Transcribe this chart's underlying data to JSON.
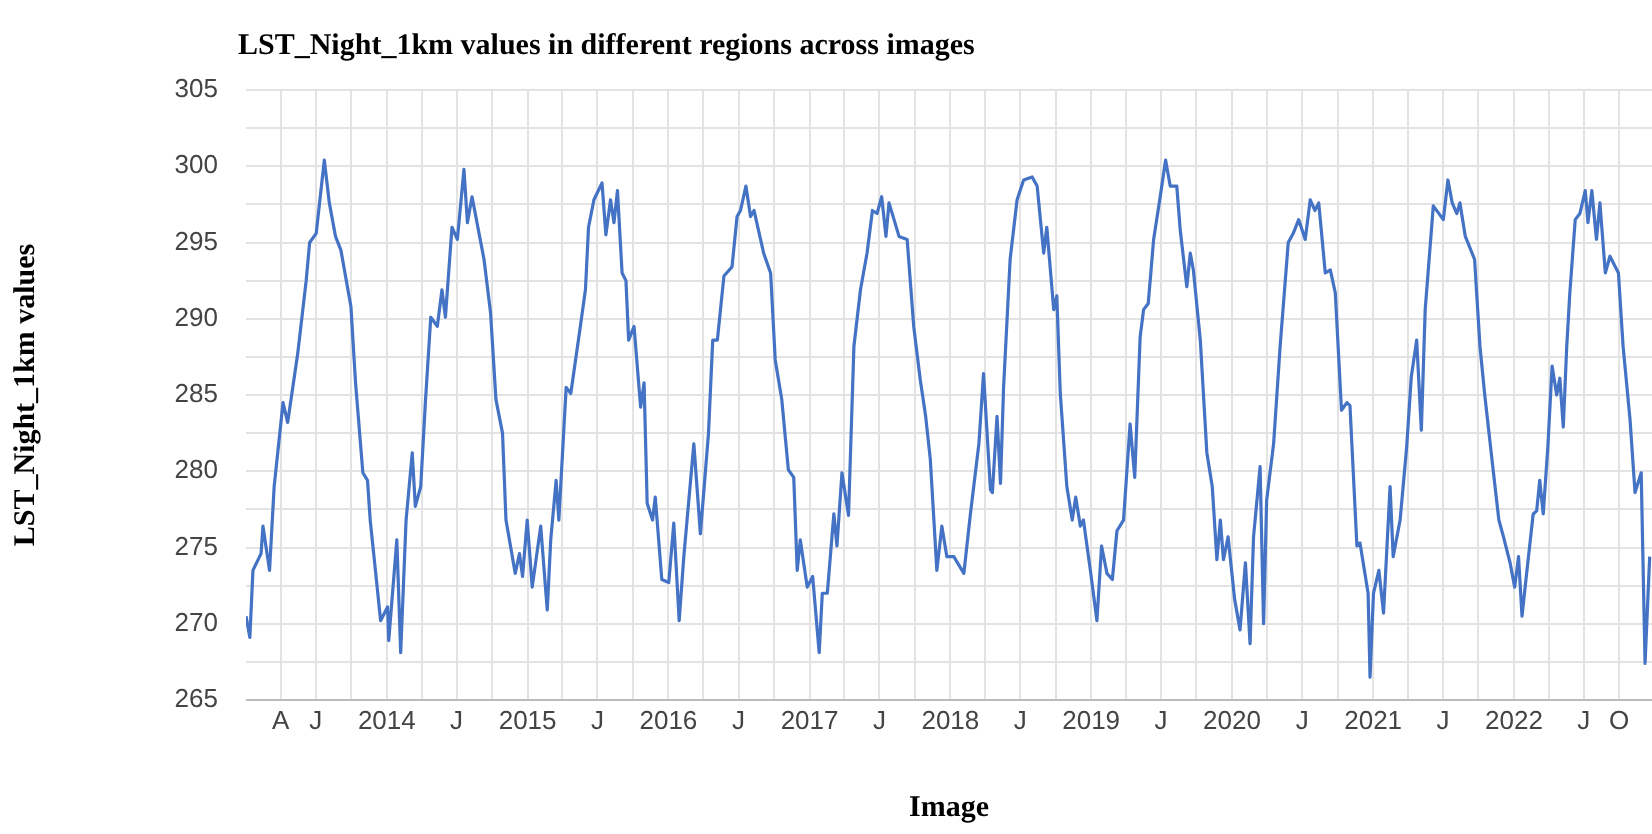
{
  "chart_data": {
    "type": "line",
    "title": "LST_Night_1km values in different regions across images",
    "xlabel": "Image",
    "ylabel": "LST_Night_1km values",
    "x": [
      "2013-01-01",
      "2013-01-11",
      "2013-01-19",
      "2013-02-09",
      "2013-02-14",
      "2013-03-03",
      "2013-03-15",
      "2013-04-07",
      "2013-04-19",
      "2013-05-15",
      "2013-06-06",
      "2013-06-15",
      "2013-07-02",
      "2013-07-23",
      "2013-08-05",
      "2013-08-21",
      "2013-09-04",
      "2013-09-30",
      "2013-10-12",
      "2013-10-31",
      "2013-11-12",
      "2013-11-19",
      "2013-12-16",
      "2014-01-03",
      "2014-01-06",
      "2014-01-27",
      "2014-02-06",
      "2014-02-20",
      "2014-03-08",
      "2014-03-16",
      "2014-03-30",
      "2014-04-11",
      "2014-04-25",
      "2014-05-12",
      "2014-05-24",
      "2014-06-02",
      "2014-06-19",
      "2014-07-03",
      "2014-07-20",
      "2014-07-29",
      "2014-08-10",
      "2014-09-10",
      "2014-09-27",
      "2014-10-11",
      "2014-10-28",
      "2014-11-06",
      "2014-11-30",
      "2014-12-11",
      "2014-12-19",
      "2014-12-31",
      "2015-01-13",
      "2015-02-04",
      "2015-02-21",
      "2015-03-02",
      "2015-03-16",
      "2015-03-23",
      "2015-04-11",
      "2015-04-23",
      "2015-05-15",
      "2015-05-31",
      "2015-06-08",
      "2015-06-22",
      "2015-07-13",
      "2015-07-23",
      "2015-08-04",
      "2015-08-13",
      "2015-08-22",
      "2015-09-03",
      "2015-09-13",
      "2015-09-20",
      "2015-10-04",
      "2015-10-21",
      "2015-10-30",
      "2015-11-07",
      "2015-11-21",
      "2015-11-28",
      "2015-12-15",
      "2016-01-02",
      "2016-01-15",
      "2016-01-29",
      "2016-02-10",
      "2016-03-07",
      "2016-03-24",
      "2016-04-14",
      "2016-04-25",
      "2016-05-07",
      "2016-05-24",
      "2016-06-14",
      "2016-06-27",
      "2016-07-06",
      "2016-07-20",
      "2016-08-01",
      "2016-08-10",
      "2016-09-04",
      "2016-09-22",
      "2016-10-04",
      "2016-10-21",
      "2016-11-07",
      "2016-11-21",
      "2016-11-30",
      "2016-12-08",
      "2016-12-26",
      "2017-01-09",
      "2017-01-26",
      "2017-02-03",
      "2017-02-16",
      "2017-03-05",
      "2017-03-13",
      "2017-03-26",
      "2017-04-12",
      "2017-04-26",
      "2017-05-13",
      "2017-05-30",
      "2017-06-13",
      "2017-06-25",
      "2017-07-07",
      "2017-07-18",
      "2017-07-26",
      "2017-08-21",
      "2017-09-11",
      "2017-09-28",
      "2017-10-15",
      "2017-10-29",
      "2017-11-10",
      "2017-11-27",
      "2017-12-10",
      "2017-12-23",
      "2018-01-10",
      "2018-02-05",
      "2018-02-22",
      "2018-03-16",
      "2018-03-28",
      "2018-04-15",
      "2018-04-20",
      "2018-05-02",
      "2018-05-11",
      "2018-05-19",
      "2018-06-05",
      "2018-06-23",
      "2018-07-10",
      "2018-08-01",
      "2018-08-14",
      "2018-08-31",
      "2018-09-08",
      "2018-09-26",
      "2018-10-04",
      "2018-10-13",
      "2018-10-30",
      "2018-11-13",
      "2018-11-22",
      "2018-12-04",
      "2018-12-12",
      "2018-12-30",
      "2019-01-16",
      "2019-01-28",
      "2019-02-11",
      "2019-02-25",
      "2019-03-09",
      "2019-03-26",
      "2019-04-12",
      "2019-04-24",
      "2019-05-08",
      "2019-05-17",
      "2019-05-29",
      "2019-06-12",
      "2019-06-29",
      "2019-07-13",
      "2019-07-25",
      "2019-08-11",
      "2019-08-20",
      "2019-09-06",
      "2019-09-15",
      "2019-09-23",
      "2019-10-11",
      "2019-10-28",
      "2019-11-11",
      "2019-11-23",
      "2019-12-02",
      "2019-12-10",
      "2019-12-22",
      "2020-01-08",
      "2020-01-22",
      "2020-02-05",
      "2020-02-17",
      "2020-02-26",
      "2020-03-14",
      "2020-03-23",
      "2020-03-31",
      "2020-04-18",
      "2020-05-05",
      "2020-05-26",
      "2020-06-08",
      "2020-06-22",
      "2020-07-09",
      "2020-07-22",
      "2020-08-03",
      "2020-08-13",
      "2020-08-30",
      "2020-09-12",
      "2020-09-25",
      "2020-10-11",
      "2020-10-25",
      "2020-11-02",
      "2020-11-20",
      "2020-11-28",
      "2020-12-19",
      "2020-12-24",
      "2021-01-02",
      "2021-01-16",
      "2021-01-28",
      "2021-02-14",
      "2021-02-22",
      "2021-03-12",
      "2021-03-29",
      "2021-04-10",
      "2021-04-24",
      "2021-05-06",
      "2021-05-16",
      "2021-06-06",
      "2021-07-02",
      "2021-07-14",
      "2021-07-25",
      "2021-08-06",
      "2021-08-14",
      "2021-08-28",
      "2021-09-21",
      "2021-10-05",
      "2021-10-17",
      "2021-11-09",
      "2021-11-23",
      "2021-12-05",
      "2021-12-22",
      "2022-01-03",
      "2022-01-13",
      "2022-01-22",
      "2022-02-03",
      "2022-02-20",
      "2022-03-01",
      "2022-03-09",
      "2022-03-18",
      "2022-03-30",
      "2022-04-10",
      "2022-04-22",
      "2022-04-30",
      "2022-05-09",
      "2022-05-18",
      "2022-05-26",
      "2022-06-09",
      "2022-06-21",
      "2022-07-05",
      "2022-07-12",
      "2022-07-22",
      "2022-08-03",
      "2022-08-12",
      "2022-08-26",
      "2022-09-07",
      "2022-09-29",
      "2022-10-11",
      "2022-10-29",
      "2022-11-11",
      "2022-11-27",
      "2022-12-07",
      "2022-12-19"
    ],
    "series": [
      {
        "color": "#4472c4",
        "values": [
          270.5,
          269.1,
          273.5,
          274.6,
          276.4,
          273.5,
          279,
          284.5,
          283.2,
          287.7,
          292.5,
          295,
          295.6,
          300.4,
          297.6,
          295.4,
          294.5,
          290.8,
          285.8,
          279.9,
          279.4,
          276.8,
          270.2,
          271.1,
          268.9,
          275.5,
          268.1,
          276.8,
          281.2,
          277.7,
          279,
          284.5,
          290.1,
          289.5,
          291.9,
          290.1,
          296,
          295.2,
          299.8,
          296.3,
          298,
          293.9,
          290.4,
          284.7,
          282.5,
          276.8,
          273.3,
          274.6,
          273.1,
          276.8,
          272.4,
          276.4,
          270.9,
          275.5,
          279.4,
          276.8,
          285.5,
          285.1,
          289,
          291.9,
          296,
          297.8,
          298.9,
          295.5,
          297.8,
          296.3,
          298.4,
          293,
          292.5,
          288.6,
          289.5,
          284.2,
          285.8,
          277.9,
          276.8,
          278.3,
          272.9,
          272.7,
          276.6,
          270.2,
          274.4,
          281.8,
          275.9,
          282.5,
          288.6,
          288.6,
          292.8,
          293.4,
          296.7,
          297.1,
          298.7,
          296.7,
          297.1,
          294.3,
          293,
          287.3,
          284.7,
          280.1,
          279.6,
          273.5,
          275.5,
          272.4,
          273.1,
          268.1,
          272,
          272,
          277.2,
          275.1,
          279.9,
          277.1,
          288.2,
          291.9,
          294.3,
          297.1,
          296.9,
          298,
          295.4,
          297.6,
          295.4,
          295.2,
          289.5,
          286,
          283.6,
          280.8,
          273.5,
          276.4,
          274.4,
          274.4,
          273.3,
          277.2,
          281.8,
          286.4,
          278.8,
          278.6,
          283.6,
          279.2,
          285.5,
          293.9,
          297.8,
          299.1,
          299.3,
          298.7,
          294.3,
          296,
          290.6,
          291.5,
          285.1,
          279,
          276.8,
          278.3,
          276.4,
          276.8,
          273.5,
          270.2,
          275.1,
          273.3,
          272.9,
          276.1,
          276.8,
          283.1,
          279.6,
          288.8,
          290.6,
          291,
          295.2,
          298,
          300.4,
          298.7,
          298.7,
          295.8,
          292.1,
          294.3,
          293.2,
          288.6,
          281.2,
          279,
          274.2,
          276.8,
          274.2,
          275.7,
          271.6,
          269.6,
          274,
          268.7,
          275.7,
          280.3,
          270,
          278.1,
          281.8,
          288.2,
          295,
          295.6,
          296.5,
          295.2,
          297.8,
          297.1,
          297.6,
          293,
          293.2,
          291.7,
          284,
          284.5,
          284.3,
          275.1,
          275.3,
          272,
          266.5,
          272,
          273.5,
          270.7,
          279,
          274.4,
          276.8,
          281.6,
          286.2,
          288.6,
          282.7,
          290.6,
          297.4,
          296.5,
          299.1,
          297.6,
          296.9,
          297.6,
          295.4,
          293.9,
          288.2,
          285.1,
          279.9,
          276.8,
          275.7,
          274,
          272.4,
          274.4,
          270.5,
          273.3,
          277.2,
          277.4,
          279.4,
          277.2,
          281.6,
          286.9,
          285,
          286.1,
          282.9,
          288.2,
          291.7,
          296.5,
          296.9,
          298.4,
          296.3,
          298.4,
          295.2,
          297.6,
          293,
          294.1,
          293,
          288.2,
          283.4,
          278.6,
          279.9,
          267.4,
          274.4
        ]
      }
    ],
    "xlim": [
      "2013-01-01",
      "2022-12-25"
    ],
    "xticks": [
      {
        "value": "2013-04",
        "label": "A"
      },
      {
        "value": "2013-07",
        "label": "J"
      },
      {
        "value": "2013-10",
        "label": null
      },
      {
        "value": "2014",
        "label": "2014"
      },
      {
        "value": "2014-04",
        "label": null
      },
      {
        "value": "2014-07",
        "label": "J"
      },
      {
        "value": "2014-10",
        "label": null
      },
      {
        "value": "2015",
        "label": "2015"
      },
      {
        "value": "2015-04",
        "label": null
      },
      {
        "value": "2015-07",
        "label": "J"
      },
      {
        "value": "2015-10",
        "label": null
      },
      {
        "value": "2016",
        "label": "2016"
      },
      {
        "value": "2016-04",
        "label": null
      },
      {
        "value": "2016-07",
        "label": "J"
      },
      {
        "value": "2016-10",
        "label": null
      },
      {
        "value": "2017",
        "label": "2017"
      },
      {
        "value": "2017-04",
        "label": null
      },
      {
        "value": "2017-07",
        "label": "J"
      },
      {
        "value": "2017-10",
        "label": null
      },
      {
        "value": "2018",
        "label": "2018"
      },
      {
        "value": "2018-04",
        "label": null
      },
      {
        "value": "2018-07",
        "label": "J"
      },
      {
        "value": "2018-10",
        "label": null
      },
      {
        "value": "2019",
        "label": "2019"
      },
      {
        "value": "2019-04",
        "label": null
      },
      {
        "value": "2019-07",
        "label": "J"
      },
      {
        "value": "2019-10",
        "label": null
      },
      {
        "value": "2020",
        "label": "2020"
      },
      {
        "value": "2020-04",
        "label": null
      },
      {
        "value": "2020-07",
        "label": "J"
      },
      {
        "value": "2020-10",
        "label": null
      },
      {
        "value": "2021",
        "label": "2021"
      },
      {
        "value": "2021-04",
        "label": null
      },
      {
        "value": "2021-07",
        "label": "J"
      },
      {
        "value": "2021-10",
        "label": null
      },
      {
        "value": "2022",
        "label": "2022"
      },
      {
        "value": "2022-04",
        "label": null
      },
      {
        "value": "2022-07",
        "label": "J"
      },
      {
        "value": "2022-10",
        "label": "O"
      }
    ],
    "ylim": [
      265,
      305
    ],
    "yticks": [
      265,
      {
        "value": 267.5,
        "label": null
      },
      270,
      {
        "value": 272.5,
        "label": null
      },
      275,
      {
        "value": 277.5,
        "label": null
      },
      280,
      {
        "value": 282.5,
        "label": null
      },
      285,
      {
        "value": 287.5,
        "label": null
      },
      290,
      {
        "value": 292.5,
        "label": null
      },
      295,
      {
        "value": 297.5,
        "label": null
      },
      300,
      {
        "value": 302.5,
        "label": null
      },
      305
    ],
    "grid": true,
    "legend": false,
    "marker": "none",
    "line_style": "solid"
  }
}
